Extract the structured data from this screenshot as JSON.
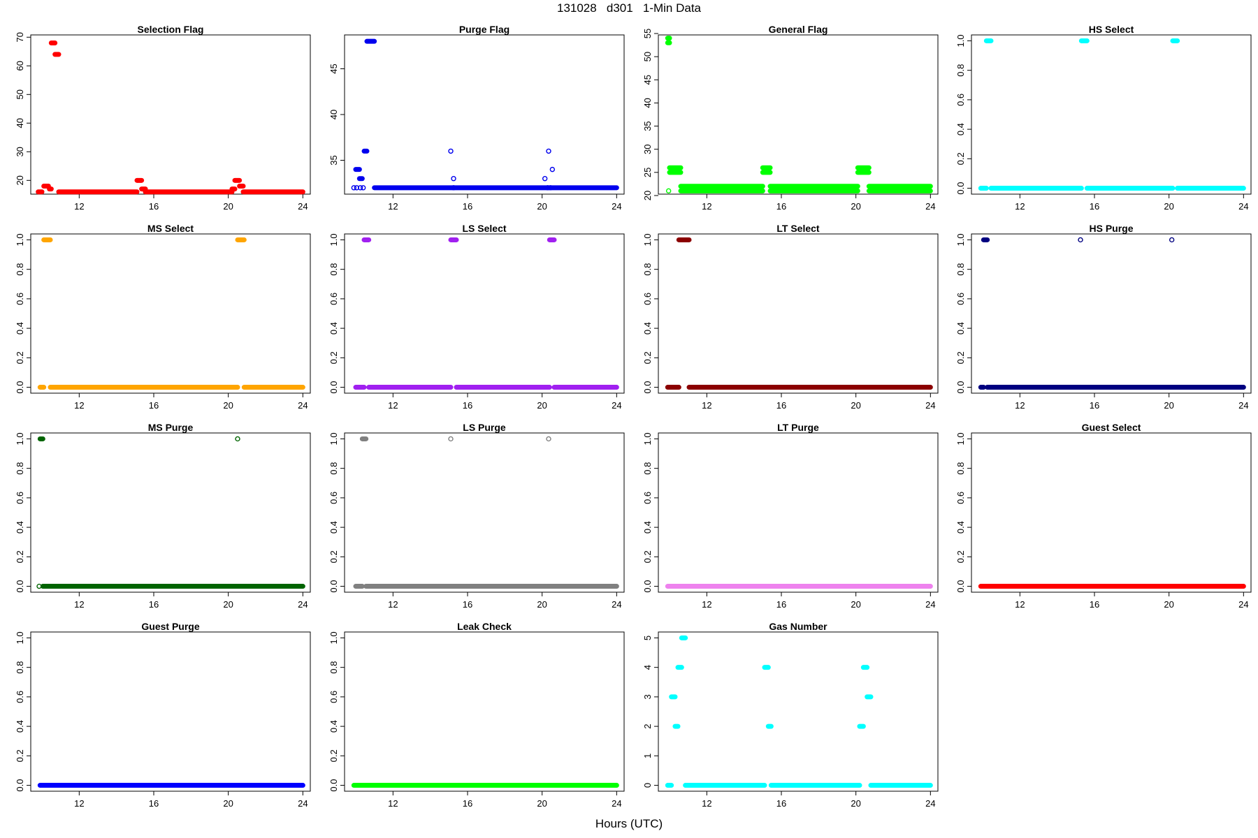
{
  "page": {
    "title": "131028   d301   1-Min Data",
    "xlabel": "Hours (UTC)"
  },
  "chart_data": [
    {
      "type": "scatter",
      "title": "Selection Flag",
      "color": "#ff0000",
      "x_ticks": [
        12,
        16,
        20,
        24
      ],
      "y_ticks": [
        20,
        30,
        40,
        50,
        60,
        70
      ],
      "ylim": [
        15.2,
        70.8
      ],
      "segments": [
        {
          "x": [
            9.8,
            10.0
          ],
          "y": 16
        },
        {
          "x": [
            10.1,
            10.35
          ],
          "y": 18
        },
        {
          "x": [
            10.4,
            10.5
          ],
          "y": 17
        },
        {
          "x": [
            10.5,
            10.7
          ],
          "y": 68
        },
        {
          "x": [
            10.7,
            10.9
          ],
          "y": 64
        },
        {
          "x": [
            10.9,
            15.1
          ],
          "y": 16
        },
        {
          "x": [
            15.1,
            15.35
          ],
          "y": 20
        },
        {
          "x": [
            15.35,
            15.55
          ],
          "y": 17
        },
        {
          "x": [
            15.55,
            20.2
          ],
          "y": 16
        },
        {
          "x": [
            20.2,
            20.35
          ],
          "y": 17
        },
        {
          "x": [
            20.35,
            20.6
          ],
          "y": 20
        },
        {
          "x": [
            20.6,
            20.8
          ],
          "y": 18
        },
        {
          "x": [
            20.8,
            24.0
          ],
          "y": 16
        }
      ],
      "points": []
    },
    {
      "type": "scatter",
      "title": "Purge Flag",
      "color": "#0000ee",
      "x_ticks": [
        12,
        16,
        20,
        24
      ],
      "y_ticks": [
        35,
        40,
        45
      ],
      "ylim": [
        31.3,
        48.7
      ],
      "segments": [
        {
          "x": [
            10.0,
            10.2
          ],
          "y": 34
        },
        {
          "x": [
            10.2,
            10.35
          ],
          "y": 33
        },
        {
          "x": [
            10.45,
            10.6
          ],
          "y": 36
        },
        {
          "x": [
            10.6,
            11.0
          ],
          "y": 48
        },
        {
          "x": [
            11.0,
            24.0
          ],
          "y": 32
        }
      ],
      "points": [
        [
          9.9,
          32
        ],
        [
          10.05,
          32
        ],
        [
          10.25,
          32
        ],
        [
          10.4,
          32
        ],
        [
          15.1,
          36
        ],
        [
          15.25,
          33
        ],
        [
          15.25,
          32
        ],
        [
          20.15,
          33
        ],
        [
          20.35,
          36
        ],
        [
          20.55,
          34
        ],
        [
          20.3,
          32
        ],
        [
          20.45,
          32
        ]
      ]
    },
    {
      "type": "scatter",
      "title": "General Flag",
      "color": "#00ff00",
      "x_ticks": [
        12,
        16,
        20,
        24
      ],
      "y_ticks": [
        20,
        25,
        30,
        35,
        40,
        45,
        50,
        55
      ],
      "ylim": [
        20.3,
        54.7
      ],
      "segments": [
        {
          "x": [
            9.9,
            10.0
          ],
          "y": 54
        },
        {
          "x": [
            9.9,
            10.0
          ],
          "y": 53
        },
        {
          "x": [
            10.0,
            10.6
          ],
          "y": 26
        },
        {
          "x": [
            10.0,
            10.6
          ],
          "y": 25
        },
        {
          "x": [
            10.6,
            15.0
          ],
          "y": 22
        },
        {
          "x": [
            10.6,
            15.0
          ],
          "y": 21
        },
        {
          "x": [
            15.0,
            15.4
          ],
          "y": 26
        },
        {
          "x": [
            15.0,
            15.4
          ],
          "y": 25
        },
        {
          "x": [
            15.4,
            20.1
          ],
          "y": 22
        },
        {
          "x": [
            15.4,
            20.1
          ],
          "y": 21
        },
        {
          "x": [
            20.1,
            20.7
          ],
          "y": 26
        },
        {
          "x": [
            20.1,
            20.7
          ],
          "y": 25
        },
        {
          "x": [
            20.7,
            24.0
          ],
          "y": 22
        },
        {
          "x": [
            20.7,
            24.0
          ],
          "y": 21
        }
      ],
      "points": [
        [
          9.95,
          21
        ]
      ]
    },
    {
      "type": "scatter",
      "title": "HS Select",
      "color": "#00ffff",
      "x_ticks": [
        12,
        16,
        20,
        24
      ],
      "y_ticks": [
        0.0,
        0.2,
        0.4,
        0.6,
        0.8,
        1.0
      ],
      "ylim": [
        -0.04,
        1.04
      ],
      "segments": [
        {
          "x": [
            9.9,
            10.2
          ],
          "y": 0
        },
        {
          "x": [
            10.2,
            10.45
          ],
          "y": 1
        },
        {
          "x": [
            10.45,
            15.3
          ],
          "y": 0
        },
        {
          "x": [
            15.3,
            15.6
          ],
          "y": 1
        },
        {
          "x": [
            15.6,
            20.2
          ],
          "y": 0
        },
        {
          "x": [
            20.2,
            20.45
          ],
          "y": 1
        },
        {
          "x": [
            20.45,
            24.0
          ],
          "y": 0
        }
      ],
      "points": []
    },
    {
      "type": "scatter",
      "title": "MS Select",
      "color": "#ffa500",
      "x_ticks": [
        12,
        16,
        20,
        24
      ],
      "y_ticks": [
        0.0,
        0.2,
        0.4,
        0.6,
        0.8,
        1.0
      ],
      "ylim": [
        -0.04,
        1.04
      ],
      "segments": [
        {
          "x": [
            9.9,
            10.1
          ],
          "y": 0
        },
        {
          "x": [
            10.1,
            10.45
          ],
          "y": 1
        },
        {
          "x": [
            10.45,
            20.5
          ],
          "y": 0
        },
        {
          "x": [
            20.5,
            20.85
          ],
          "y": 1
        },
        {
          "x": [
            20.85,
            24.0
          ],
          "y": 0
        }
      ],
      "points": []
    },
    {
      "type": "scatter",
      "title": "LS Select",
      "color": "#a020f0",
      "x_ticks": [
        12,
        16,
        20,
        24
      ],
      "y_ticks": [
        0.0,
        0.2,
        0.4,
        0.6,
        0.8,
        1.0
      ],
      "ylim": [
        -0.04,
        1.04
      ],
      "segments": [
        {
          "x": [
            10.0,
            10.45
          ],
          "y": 0
        },
        {
          "x": [
            10.45,
            10.7
          ],
          "y": 1
        },
        {
          "x": [
            10.7,
            15.1
          ],
          "y": 0
        },
        {
          "x": [
            15.1,
            15.4
          ],
          "y": 1
        },
        {
          "x": [
            15.4,
            20.4
          ],
          "y": 0
        },
        {
          "x": [
            20.4,
            20.65
          ],
          "y": 1
        },
        {
          "x": [
            20.65,
            24.0
          ],
          "y": 0
        }
      ],
      "points": []
    },
    {
      "type": "scatter",
      "title": "LT Select",
      "color": "#8b0000",
      "x_ticks": [
        12,
        16,
        20,
        24
      ],
      "y_ticks": [
        0.0,
        0.2,
        0.4,
        0.6,
        0.8,
        1.0
      ],
      "ylim": [
        -0.04,
        1.04
      ],
      "segments": [
        {
          "x": [
            9.9,
            10.5
          ],
          "y": 0
        },
        {
          "x": [
            10.5,
            11.05
          ],
          "y": 1
        },
        {
          "x": [
            11.05,
            24.0
          ],
          "y": 0
        }
      ],
      "points": []
    },
    {
      "type": "scatter",
      "title": "HS Purge",
      "color": "#000080",
      "x_ticks": [
        12,
        16,
        20,
        24
      ],
      "y_ticks": [
        0.0,
        0.2,
        0.4,
        0.6,
        0.8,
        1.0
      ],
      "ylim": [
        -0.04,
        1.04
      ],
      "segments": [
        {
          "x": [
            9.9,
            10.05
          ],
          "y": 0
        },
        {
          "x": [
            10.05,
            10.25
          ],
          "y": 1
        },
        {
          "x": [
            10.25,
            24.0
          ],
          "y": 0
        }
      ],
      "points": [
        [
          15.25,
          1
        ],
        [
          20.15,
          1
        ]
      ]
    },
    {
      "type": "scatter",
      "title": "MS Purge",
      "color": "#006400",
      "x_ticks": [
        12,
        16,
        20,
        24
      ],
      "y_ticks": [
        0.0,
        0.2,
        0.4,
        0.6,
        0.8,
        1.0
      ],
      "ylim": [
        -0.04,
        1.04
      ],
      "segments": [
        {
          "x": [
            9.9,
            10.05
          ],
          "y": 1
        },
        {
          "x": [
            10.05,
            24.0
          ],
          "y": 0
        }
      ],
      "points": [
        [
          9.85,
          0
        ],
        [
          20.5,
          1
        ]
      ]
    },
    {
      "type": "scatter",
      "title": "LS Purge",
      "color": "#808080",
      "x_ticks": [
        12,
        16,
        20,
        24
      ],
      "y_ticks": [
        0.0,
        0.2,
        0.4,
        0.6,
        0.8,
        1.0
      ],
      "ylim": [
        -0.04,
        1.04
      ],
      "segments": [
        {
          "x": [
            10.0,
            10.35
          ],
          "y": 0
        },
        {
          "x": [
            10.35,
            10.55
          ],
          "y": 1
        },
        {
          "x": [
            10.55,
            24.0
          ],
          "y": 0
        }
      ],
      "points": [
        [
          15.1,
          1
        ],
        [
          20.35,
          1
        ]
      ]
    },
    {
      "type": "scatter",
      "title": "LT Purge",
      "color": "#ee82ee",
      "x_ticks": [
        12,
        16,
        20,
        24
      ],
      "y_ticks": [
        0.0,
        0.2,
        0.4,
        0.6,
        0.8,
        1.0
      ],
      "ylim": [
        -0.04,
        1.04
      ],
      "segments": [
        {
          "x": [
            9.9,
            24.0
          ],
          "y": 0
        }
      ],
      "points": []
    },
    {
      "type": "scatter",
      "title": "Guest Select",
      "color": "#ff0000",
      "x_ticks": [
        12,
        16,
        20,
        24
      ],
      "y_ticks": [
        0.0,
        0.2,
        0.4,
        0.6,
        0.8,
        1.0
      ],
      "ylim": [
        -0.04,
        1.04
      ],
      "segments": [
        {
          "x": [
            9.9,
            24.0
          ],
          "y": 0
        }
      ],
      "points": []
    },
    {
      "type": "scatter",
      "title": "Guest Purge",
      "color": "#0000ff",
      "x_ticks": [
        12,
        16,
        20,
        24
      ],
      "y_ticks": [
        0.0,
        0.2,
        0.4,
        0.6,
        0.8,
        1.0
      ],
      "ylim": [
        -0.04,
        1.04
      ],
      "segments": [
        {
          "x": [
            9.9,
            24.0
          ],
          "y": 0
        }
      ],
      "points": []
    },
    {
      "type": "scatter",
      "title": "Leak Check",
      "color": "#00ff00",
      "x_ticks": [
        12,
        16,
        20,
        24
      ],
      "y_ticks": [
        0.0,
        0.2,
        0.4,
        0.6,
        0.8,
        1.0
      ],
      "ylim": [
        -0.04,
        1.04
      ],
      "segments": [
        {
          "x": [
            9.9,
            24.0
          ],
          "y": 0
        }
      ],
      "points": []
    },
    {
      "type": "scatter",
      "title": "Gas Number",
      "color": "#00ffff",
      "x_ticks": [
        12,
        16,
        20,
        24
      ],
      "y_ticks": [
        0,
        1,
        2,
        3,
        4,
        5
      ],
      "ylim": [
        -0.2,
        5.2
      ],
      "segments": [
        {
          "x": [
            9.9,
            10.1
          ],
          "y": 0
        },
        {
          "x": [
            10.1,
            10.3
          ],
          "y": 3
        },
        {
          "x": [
            10.3,
            10.45
          ],
          "y": 2
        },
        {
          "x": [
            10.45,
            10.65
          ],
          "y": 4
        },
        {
          "x": [
            10.65,
            10.85
          ],
          "y": 5
        },
        {
          "x": [
            10.85,
            15.1
          ],
          "y": 0
        },
        {
          "x": [
            15.1,
            15.3
          ],
          "y": 4
        },
        {
          "x": [
            15.3,
            15.45
          ],
          "y": 2
        },
        {
          "x": [
            15.45,
            20.2
          ],
          "y": 0
        },
        {
          "x": [
            20.2,
            20.4
          ],
          "y": 2
        },
        {
          "x": [
            20.4,
            20.6
          ],
          "y": 4
        },
        {
          "x": [
            20.6,
            20.8
          ],
          "y": 3
        },
        {
          "x": [
            20.8,
            24.0
          ],
          "y": 0
        }
      ],
      "points": []
    }
  ]
}
